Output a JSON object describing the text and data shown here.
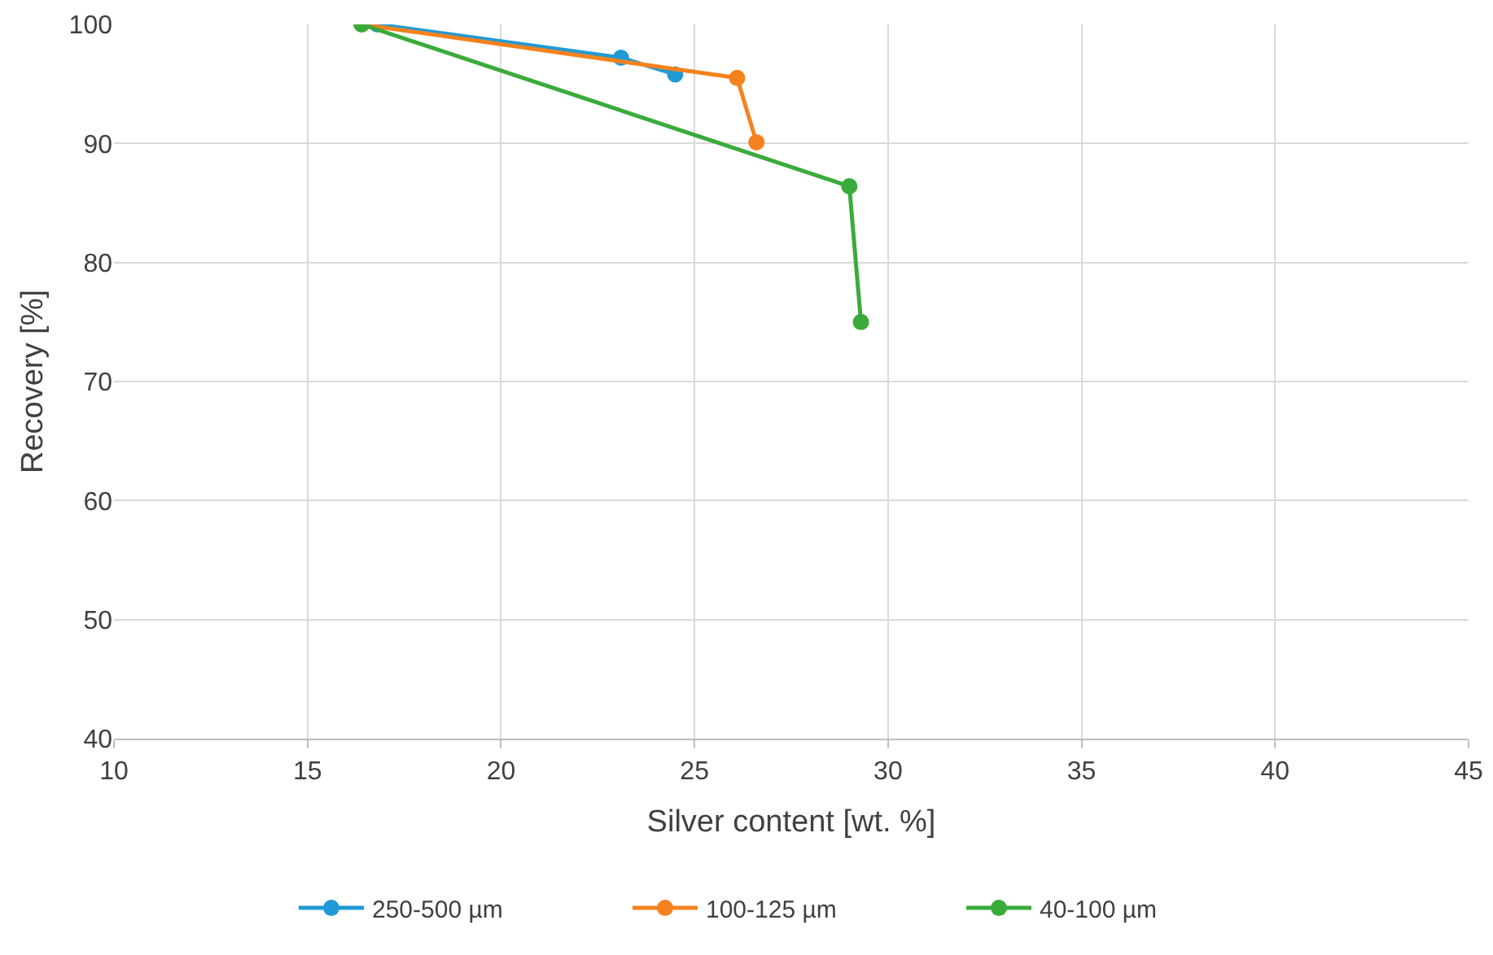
{
  "chart_data": {
    "type": "line",
    "xlabel": "Silver content [wt. %]",
    "ylabel": "Recovery [%]",
    "xlim": [
      10,
      45
    ],
    "xticks": [
      10,
      15,
      20,
      25,
      30,
      35,
      40,
      45
    ],
    "ylim": [
      40,
      100
    ],
    "yticks": [
      40,
      50,
      60,
      70,
      80,
      90,
      100
    ],
    "grid": true,
    "legend": "bottom",
    "marker": "circle",
    "line_style": "solid",
    "series": [
      {
        "name": "250-500 µm",
        "color": "#1f9ad6",
        "x": [
          16.8,
          23.1,
          24.5
        ],
        "values": [
          100,
          97.2,
          95.8
        ]
      },
      {
        "name": "100-125 µm",
        "color": "#f5821f",
        "x": [
          16.4,
          26.1,
          26.6
        ],
        "values": [
          100,
          95.5,
          90.1
        ]
      },
      {
        "name": "40-100 µm",
        "color": "#3aab3a",
        "x": [
          16.4,
          29.0,
          29.3
        ],
        "values": [
          100,
          86.4,
          75.0
        ]
      }
    ]
  }
}
